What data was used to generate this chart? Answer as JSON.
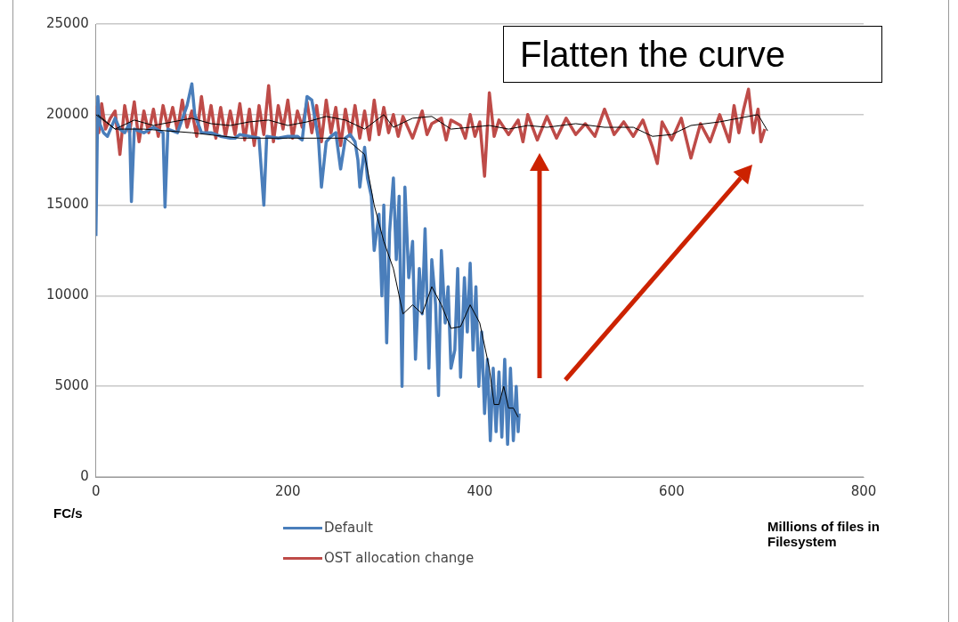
{
  "chart_data": {
    "type": "line",
    "xlabel": "Millions of files in Filesystem",
    "ylabel": "FC/s",
    "xlim": [
      0,
      800
    ],
    "xticks": [
      0,
      200,
      400,
      600,
      800
    ],
    "ylim": [
      0,
      25000
    ],
    "yticks": [
      0,
      5000,
      10000,
      15000,
      20000,
      25000
    ],
    "grid": "y",
    "legend": "bottom",
    "marker": "none",
    "line_style": "solid",
    "annotations": [
      "Flatten the curve"
    ],
    "series": [
      {
        "name": "Default",
        "color": "#4a7ebb",
        "x": [
          0,
          2,
          4,
          8,
          12,
          20,
          25,
          30,
          35,
          37,
          40,
          50,
          60,
          70,
          72,
          75,
          85,
          95,
          100,
          103,
          110,
          120,
          130,
          140,
          145,
          150,
          170,
          175,
          178,
          190,
          200,
          210,
          215,
          220,
          225,
          232,
          235,
          240,
          245,
          250,
          255,
          260,
          265,
          270,
          273,
          275,
          280,
          283,
          287,
          290,
          295,
          298,
          300,
          303,
          306,
          310,
          313,
          316,
          319,
          322,
          326,
          330,
          333,
          337,
          340,
          343,
          347,
          350,
          354,
          357,
          360,
          364,
          367,
          370,
          374,
          377,
          380,
          384,
          387,
          390,
          393,
          396,
          399,
          402,
          405,
          408,
          411,
          414,
          417,
          420,
          423,
          426,
          429,
          432,
          435,
          438,
          440,
          441
        ],
        "values": [
          13300,
          21000,
          19500,
          19000,
          18800,
          19800,
          19200,
          19000,
          19500,
          15200,
          19200,
          19000,
          19300,
          19000,
          14900,
          19200,
          19000,
          20500,
          21700,
          20000,
          19000,
          19000,
          18800,
          18700,
          18700,
          18900,
          18700,
          15000,
          18800,
          18700,
          18800,
          18800,
          18600,
          21000,
          20800,
          18600,
          16000,
          18500,
          18800,
          19000,
          17000,
          18700,
          18900,
          18500,
          17500,
          16000,
          18200,
          16500,
          15500,
          12500,
          14500,
          10000,
          15000,
          7400,
          13500,
          16500,
          12000,
          15500,
          5000,
          16000,
          11000,
          13000,
          6500,
          11500,
          9000,
          13700,
          6000,
          12000,
          9500,
          4500,
          12500,
          8500,
          10500,
          6000,
          7000,
          11500,
          5500,
          11000,
          8000,
          11800,
          7000,
          10500,
          5000,
          8000,
          3500,
          6500,
          2000,
          6000,
          2500,
          5800,
          2200,
          6500,
          1800,
          6000,
          2000,
          5000,
          2500,
          3500
        ]
      },
      {
        "name": "OST allocation change",
        "color": "#be4b48",
        "x": [
          0,
          3,
          6,
          10,
          15,
          20,
          25,
          30,
          35,
          40,
          45,
          50,
          55,
          60,
          65,
          70,
          75,
          80,
          85,
          90,
          95,
          100,
          105,
          110,
          115,
          120,
          125,
          130,
          135,
          140,
          145,
          150,
          155,
          160,
          165,
          170,
          175,
          180,
          185,
          190,
          195,
          200,
          205,
          210,
          215,
          220,
          225,
          230,
          235,
          240,
          245,
          250,
          255,
          260,
          265,
          270,
          275,
          280,
          285,
          290,
          295,
          300,
          305,
          310,
          315,
          320,
          330,
          340,
          345,
          350,
          360,
          365,
          370,
          380,
          385,
          390,
          395,
          400,
          405,
          410,
          415,
          420,
          430,
          440,
          445,
          450,
          460,
          470,
          480,
          490,
          500,
          510,
          520,
          530,
          540,
          550,
          560,
          570,
          580,
          585,
          590,
          600,
          610,
          620,
          630,
          640,
          650,
          660,
          665,
          670,
          675,
          680,
          685,
          690,
          693,
          697
        ],
        "values": [
          20500,
          19000,
          20600,
          19200,
          19800,
          20200,
          17800,
          20500,
          19000,
          20700,
          18500,
          20200,
          19000,
          20300,
          18800,
          20500,
          19300,
          20400,
          19100,
          20800,
          19300,
          20200,
          18800,
          21000,
          19000,
          20500,
          18700,
          20400,
          18800,
          20200,
          18900,
          20600,
          18600,
          20300,
          18300,
          20500,
          18900,
          21600,
          18500,
          20500,
          19200,
          20800,
          18700,
          20200,
          19300,
          20700,
          19000,
          20500,
          18500,
          20800,
          19000,
          20400,
          18300,
          20300,
          18800,
          20500,
          18700,
          20200,
          18600,
          20800,
          18900,
          20400,
          19000,
          20000,
          18800,
          19900,
          18700,
          20200,
          18900,
          19500,
          19800,
          18600,
          19700,
          19400,
          18700,
          20000,
          18800,
          19600,
          16600,
          21200,
          18800,
          19700,
          18900,
          19700,
          18500,
          20000,
          18600,
          19900,
          18700,
          19800,
          18900,
          19500,
          18800,
          20300,
          18900,
          19600,
          18800,
          19700,
          18200,
          17300,
          19600,
          18600,
          19800,
          17600,
          19500,
          18500,
          20000,
          18500,
          20500,
          19000,
          20300,
          21400,
          19000,
          20300,
          18500,
          19200
        ]
      },
      {
        "color": "#000000",
        "x": [
          2,
          20,
          50,
          100,
          150,
          200,
          230,
          260,
          280,
          290,
          300,
          310,
          320,
          330,
          340,
          350,
          360,
          370,
          380,
          390,
          400,
          410,
          415,
          420,
          425,
          430,
          435,
          440
        ],
        "values": [
          20000,
          19200,
          19200,
          19000,
          18700,
          18700,
          18700,
          18700,
          17800,
          15000,
          13000,
          11500,
          9000,
          9500,
          9000,
          10500,
          9500,
          8200,
          8300,
          9500,
          8500,
          6000,
          4000,
          4000,
          5000,
          3800,
          3800,
          3300
        ]
      },
      {
        "color": "#000000",
        "x": [
          0,
          20,
          40,
          60,
          80,
          100,
          120,
          140,
          160,
          180,
          200,
          220,
          240,
          260,
          280,
          300,
          310,
          330,
          350,
          370,
          390,
          410,
          430,
          450,
          470,
          500,
          530,
          560,
          580,
          600,
          620,
          650,
          670,
          690,
          700
        ],
        "values": [
          20000,
          19200,
          19700,
          19400,
          19600,
          19800,
          19500,
          19400,
          19600,
          19700,
          19400,
          19600,
          19900,
          19700,
          19200,
          20000,
          19300,
          19800,
          19900,
          19200,
          19300,
          19400,
          19200,
          19400,
          19300,
          19500,
          19300,
          19300,
          18800,
          18900,
          19400,
          19600,
          19800,
          20000,
          19100
        ]
      }
    ]
  }
}
